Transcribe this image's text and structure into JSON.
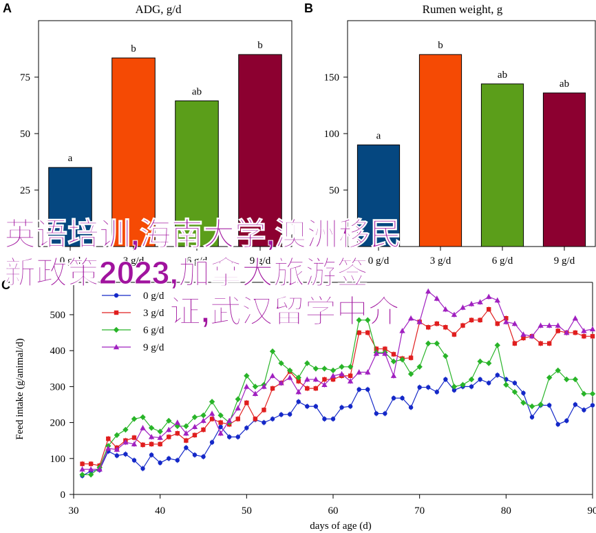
{
  "chart_data": [
    {
      "panel_label": "A",
      "type": "bar",
      "title": "ADG, g/d",
      "categories": [
        "0 g/d",
        "3 g/d",
        "6 g/d",
        "9 g/d"
      ],
      "values": [
        35,
        83.5,
        64.5,
        85
      ],
      "letters": [
        "a",
        "b",
        "ab",
        "b"
      ],
      "colors": [
        "#054780",
        "#f54a04",
        "#5b9e1a",
        "#8c0030"
      ],
      "ylim": [
        0,
        100
      ],
      "yticks": [
        25,
        50,
        75
      ],
      "grid": false
    },
    {
      "panel_label": "B",
      "type": "bar",
      "title": "Rumen weight, g",
      "categories": [
        "0 g/d",
        "3 g/d",
        "6 g/d",
        "9 g/d"
      ],
      "values": [
        90,
        170,
        144,
        136
      ],
      "letters": [
        "a",
        "b",
        "ab",
        "ab"
      ],
      "colors": [
        "#054780",
        "#f54a04",
        "#5b9e1a",
        "#8c0030"
      ],
      "ylim": [
        0,
        200
      ],
      "yticks": [
        50,
        100,
        150
      ],
      "grid": false
    },
    {
      "panel_label": "C",
      "type": "line",
      "xlabel": "days of age (d)",
      "ylabel": "Feed intake (g/animal/d)",
      "xlim": [
        30,
        90
      ],
      "ylim": [
        0,
        590
      ],
      "xticks": [
        30,
        40,
        50,
        60,
        70,
        80,
        90
      ],
      "yticks": [
        0,
        100,
        200,
        300,
        400,
        500
      ],
      "legend_position": "top-left",
      "grid": false,
      "x": [
        31,
        32,
        33,
        34,
        35,
        36,
        37,
        38,
        39,
        40,
        41,
        42,
        43,
        44,
        45,
        46,
        47,
        48,
        49,
        50,
        51,
        52,
        53,
        54,
        55,
        56,
        57,
        58,
        59,
        60,
        61,
        62,
        63,
        64,
        65,
        66,
        67,
        68,
        69,
        70,
        71,
        72,
        73,
        74,
        75,
        76,
        77,
        78,
        79,
        80,
        81,
        82,
        83,
        84,
        85,
        86,
        87,
        88,
        89,
        90
      ],
      "series": [
        {
          "name": "0 g/d",
          "color": "#1428c8",
          "marker": "circle",
          "values": [
            52,
            65,
            68,
            120,
            108,
            112,
            95,
            72,
            110,
            88,
            100,
            95,
            130,
            110,
            105,
            145,
            188,
            160,
            160,
            185,
            208,
            200,
            210,
            222,
            223,
            258,
            245,
            245,
            210,
            210,
            242,
            245,
            292,
            292,
            225,
            225,
            268,
            268,
            242,
            298,
            298,
            285,
            320,
            290,
            300,
            300,
            320,
            310,
            332,
            320,
            310,
            282,
            215,
            248,
            248,
            195,
            205,
            250,
            235,
            248
          ]
        },
        {
          "name": "3 g/d",
          "color": "#e01e1e",
          "marker": "square",
          "values": [
            85,
            85,
            80,
            155,
            130,
            150,
            158,
            138,
            140,
            140,
            160,
            170,
            150,
            165,
            180,
            210,
            200,
            195,
            210,
            255,
            210,
            235,
            295,
            310,
            342,
            315,
            295,
            295,
            320,
            320,
            330,
            330,
            450,
            450,
            405,
            405,
            390,
            378,
            380,
            480,
            465,
            475,
            465,
            445,
            470,
            485,
            485,
            515,
            475,
            490,
            420,
            435,
            440,
            420,
            420,
            455,
            450,
            450,
            440,
            440
          ]
        },
        {
          "name": "6 g/d",
          "color": "#28b428",
          "marker": "diamond",
          "values": [
            55,
            55,
            75,
            135,
            165,
            180,
            210,
            215,
            185,
            175,
            205,
            190,
            190,
            215,
            220,
            258,
            220,
            200,
            265,
            330,
            300,
            305,
            398,
            365,
            345,
            325,
            365,
            350,
            350,
            345,
            355,
            355,
            485,
            485,
            395,
            395,
            370,
            375,
            335,
            355,
            420,
            420,
            385,
            300,
            305,
            320,
            370,
            365,
            415,
            305,
            285,
            255,
            245,
            250,
            325,
            345,
            320,
            320,
            280,
            280
          ]
        },
        {
          "name": "9 g/d",
          "color": "#a020c0",
          "marker": "triangle",
          "values": [
            70,
            70,
            70,
            128,
            125,
            145,
            140,
            185,
            160,
            158,
            180,
            200,
            170,
            188,
            205,
            225,
            170,
            205,
            240,
            300,
            280,
            300,
            330,
            310,
            325,
            285,
            320,
            320,
            305,
            330,
            335,
            315,
            340,
            340,
            392,
            392,
            330,
            455,
            490,
            480,
            565,
            545,
            515,
            500,
            520,
            530,
            535,
            550,
            540,
            480,
            475,
            445,
            440,
            470,
            470,
            470,
            450,
            490,
            455,
            460
          ]
        }
      ]
    }
  ],
  "watermark": {
    "line1": "英语培训,海南大学,澳洲移民",
    "line2": "新政策2023,加拿大旅游签",
    "line3": "证,武汉留学中介"
  }
}
